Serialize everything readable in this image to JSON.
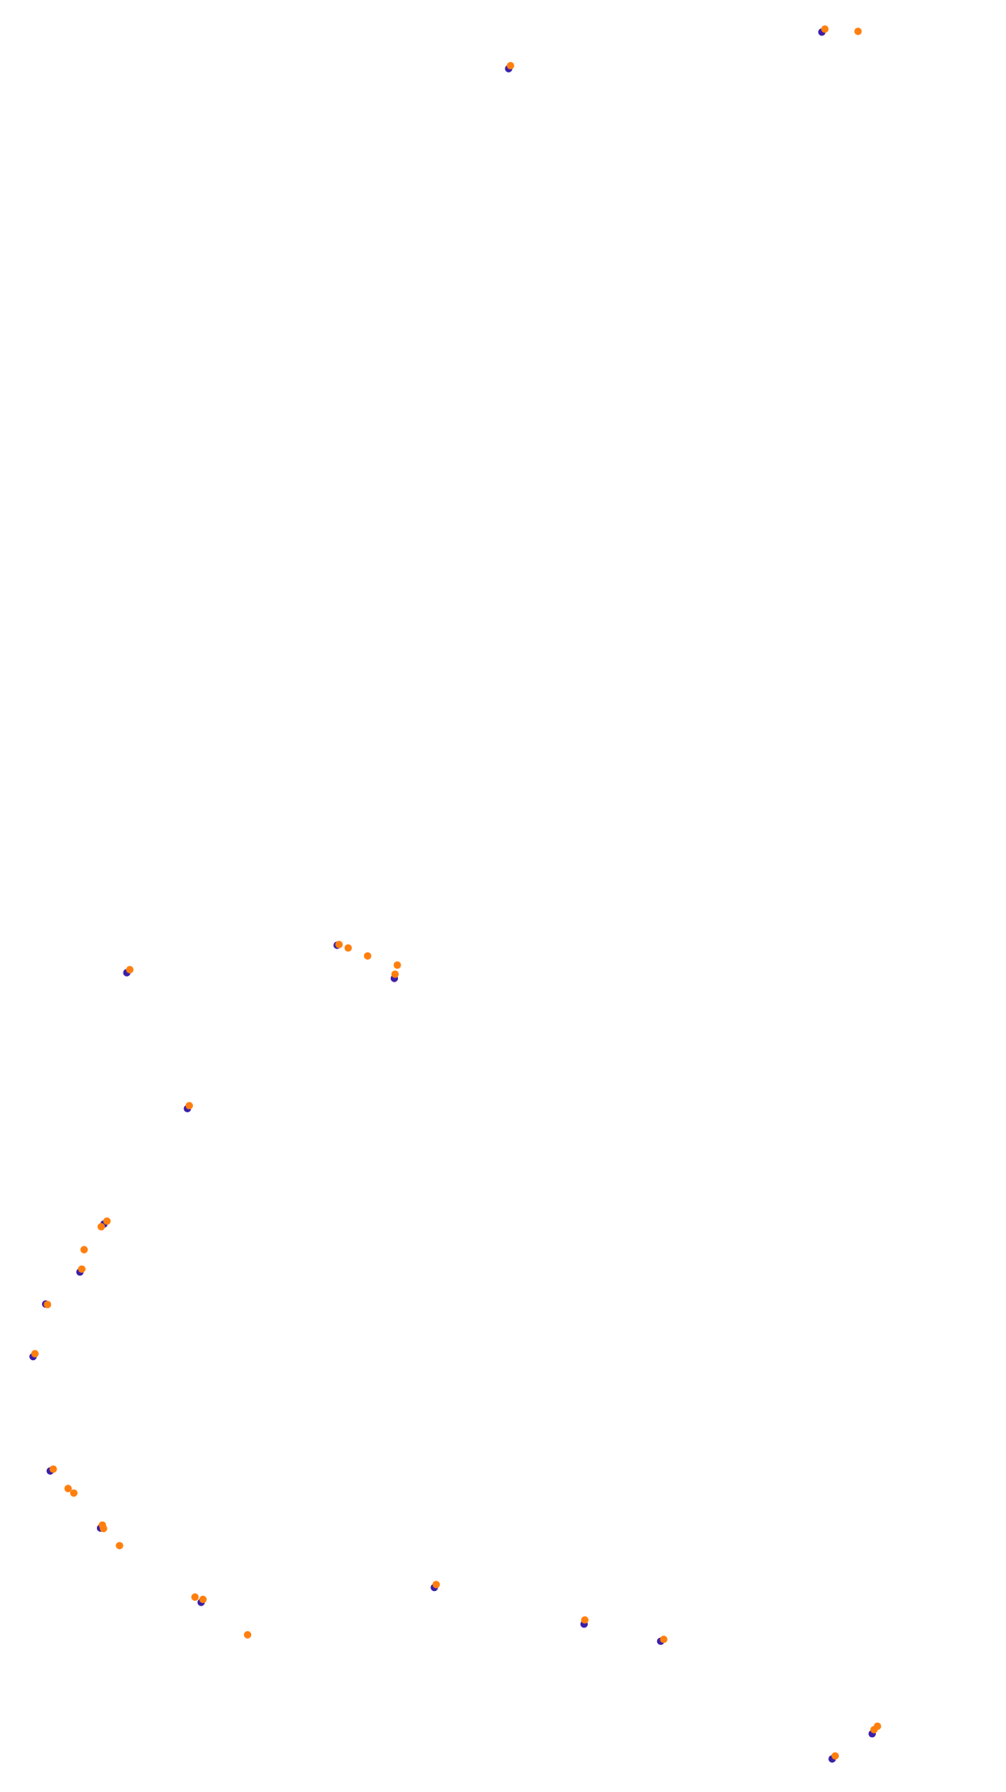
{
  "chart_data": {
    "type": "scatter",
    "title": "",
    "xlabel": "",
    "ylabel": "",
    "grid": false,
    "legend": "none",
    "xlim": [
      0,
      880
    ],
    "ylim": [
      0,
      1568
    ],
    "y_inverted": true,
    "colors": {
      "series_a": "#3b1fa8",
      "series_b": "#ff7f0e",
      "background": "#ffffff"
    },
    "series": [
      {
        "values": [
          [
            720,
            27
          ],
          [
            446,
            59
          ],
          [
            296,
            826
          ],
          [
            112,
            850
          ],
          [
            346,
            855
          ],
          [
            165,
            969
          ],
          [
            92,
            1070
          ],
          [
            71,
            1112
          ],
          [
            41,
            1140
          ],
          [
            30,
            1186
          ],
          [
            45,
            1286
          ],
          [
            89,
            1336
          ],
          [
            177,
            1401
          ],
          [
            381,
            1388
          ],
          [
            512,
            1420
          ],
          [
            579,
            1435
          ],
          [
            764,
            1516
          ],
          [
            729,
            1538
          ]
        ]
      },
      {
        "values": [
          [
            721,
            26
          ],
          [
            750,
            28
          ],
          [
            446,
            58
          ],
          [
            296,
            827
          ],
          [
            304,
            830
          ],
          [
            321,
            837
          ],
          [
            347,
            845
          ],
          [
            345,
            853
          ],
          [
            113,
            849
          ],
          [
            165,
            968
          ],
          [
            88,
            1074
          ],
          [
            93,
            1069
          ],
          [
            73,
            1094
          ],
          [
            71,
            1111
          ],
          [
            41,
            1142
          ],
          [
            30,
            1185
          ],
          [
            46,
            1286
          ],
          [
            59,
            1303
          ],
          [
            64,
            1307
          ],
          [
            89,
            1335
          ],
          [
            90,
            1338
          ],
          [
            104,
            1353
          ],
          [
            170,
            1398
          ],
          [
            177,
            1400
          ],
          [
            216,
            1431
          ],
          [
            381,
            1387
          ],
          [
            511,
            1418
          ],
          [
            580,
            1435
          ],
          [
            767,
            1511
          ],
          [
            764,
            1514
          ],
          [
            730,
            1537
          ]
        ]
      }
    ]
  }
}
